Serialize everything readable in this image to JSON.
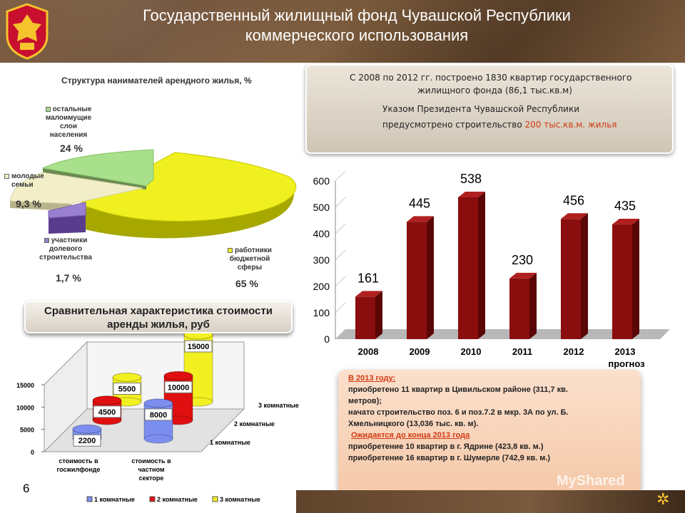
{
  "header": {
    "title_line1": "Государственный жилищный фонд Чувашской Республики",
    "title_line2": "коммерческого использования"
  },
  "pie": {
    "title": "Структура нанимателей арендного жилья, %",
    "labels": {
      "others": [
        "остальные",
        "малоимущие",
        "слои",
        "населения"
      ],
      "young": [
        "молодые",
        "семьи"
      ],
      "shared": [
        "участники",
        "долевого",
        "строительства"
      ],
      "budget": [
        "работники",
        "бюджетной",
        "сферы"
      ]
    },
    "pcts": {
      "others": "24 %",
      "young": "9,3 %",
      "shared": "1,7 %",
      "budget": "65 %"
    }
  },
  "info_top": {
    "line1": "С 2008 по 2012 гг. построено 1830 квартир государственного",
    "line2": "жилищного фонда (86,1 тыс.кв.м)",
    "line3": "Указом Президента Чувашской Республики",
    "line4_pre": "предусмотрено строительство ",
    "line4_red": "200 тыс.кв.м. жилья"
  },
  "comparison": {
    "title_line1": "Сравнительная характеристика стоимости",
    "title_line2": "аренды жилья, руб",
    "y_ticks": [
      "15000",
      "10000",
      "5000",
      "0"
    ],
    "x_labels": [
      [
        "стоимость  в",
        "госжилфонде"
      ],
      [
        "стоимость  в",
        "частном",
        "секторе"
      ]
    ],
    "depth_labels": [
      "3 комнатные",
      "2 комнатные",
      "1 комнатные"
    ],
    "legend": [
      "1 комнатные",
      "2 комнатные",
      "3 комнатные"
    ],
    "values": {
      "state": [
        "2200",
        "4500",
        "5500"
      ],
      "private": [
        "8000",
        "10000",
        "15000"
      ]
    }
  },
  "chart_data": [
    {
      "type": "pie",
      "title": "Структура нанимателей арендного жилья, %",
      "categories": [
        "остальные малоимущие слои населения",
        "молодые семьи",
        "участники долевого строительства",
        "работники бюджетной сферы"
      ],
      "values": [
        24,
        9.3,
        1.7,
        65
      ],
      "colors": [
        "#a8e08c",
        "#f2efc8",
        "#9a7fd0",
        "#f0f020"
      ]
    },
    {
      "type": "bar",
      "categories": [
        "2008",
        "2009",
        "2010",
        "2011",
        "2012",
        "2013"
      ],
      "x_sublabel": "прогноз",
      "values": [
        161,
        445,
        538,
        230,
        456,
        435
      ],
      "yticks": [
        "600",
        "500",
        "400",
        "300",
        "200",
        "100",
        "0"
      ],
      "ylim": [
        0,
        600
      ],
      "color": "#8b0e0e"
    },
    {
      "type": "bar",
      "title": "Сравнительная характеристика стоимости аренды жилья, руб",
      "categories": [
        "стоимость в госжилфонде",
        "стоимость в частном секторе"
      ],
      "series": [
        {
          "name": "1 комнатные",
          "values": [
            2200,
            8000
          ],
          "color": "#7b8ef0"
        },
        {
          "name": "2 комнатные",
          "values": [
            4500,
            10000
          ],
          "color": "#e01010"
        },
        {
          "name": "3 комнатные",
          "values": [
            5500,
            15000
          ],
          "color": "#f2f020"
        }
      ],
      "ylim": [
        0,
        15000
      ]
    }
  ],
  "note": {
    "heading": "В 2013 году:",
    "line1": "приобретено 11 квартир в Цивильском районе (311,7 кв.",
    "line2": "метров);",
    "line3": "начато строительство поз. 6 и поз.7.2 в мкр. 3А по ул. Б.",
    "line4": "Хмельницкого (13,036 тыс. кв. м).",
    "expected": "Ожидается до конца 2013 года",
    "line5": "приобретение 10 квартир в г. Ядрине (423,8 кв. м.)",
    "line6": "приобретение 16 квартир в г. Шумерле (742,9 кв. м.)"
  },
  "page_number": "6",
  "watermark": "MyShared"
}
